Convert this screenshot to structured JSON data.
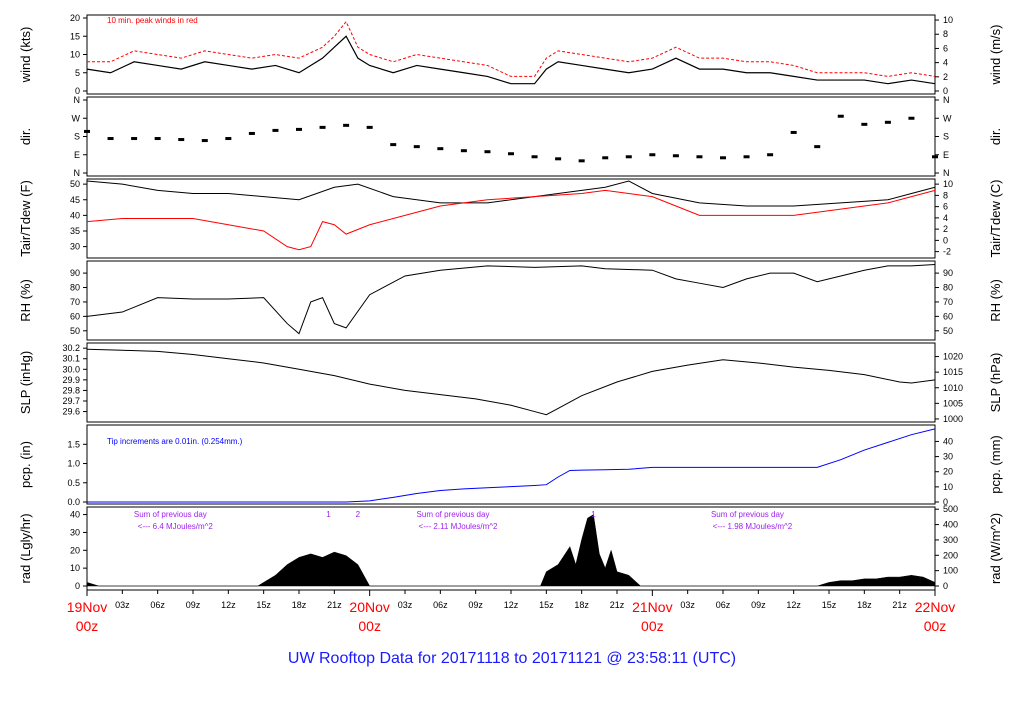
{
  "title": "UW Rooftop Data for 20171118  to  20171121 @ 23:58:11  (UTC)",
  "colors": {
    "black": "#000000",
    "red": "#ff0000",
    "blue": "#0000ff",
    "purple": "#a020f0",
    "title_blue": "#1a1aff"
  },
  "x_axis": {
    "range_hours": [
      0,
      72
    ],
    "ticks": [
      {
        "h": 3,
        "label": "03z"
      },
      {
        "h": 6,
        "label": "06z"
      },
      {
        "h": 9,
        "label": "09z"
      },
      {
        "h": 12,
        "label": "12z"
      },
      {
        "h": 15,
        "label": "15z"
      },
      {
        "h": 18,
        "label": "18z"
      },
      {
        "h": 21,
        "label": "21z"
      },
      {
        "h": 27,
        "label": "03z"
      },
      {
        "h": 30,
        "label": "06z"
      },
      {
        "h": 33,
        "label": "09z"
      },
      {
        "h": 36,
        "label": "12z"
      },
      {
        "h": 39,
        "label": "15z"
      },
      {
        "h": 42,
        "label": "18z"
      },
      {
        "h": 45,
        "label": "21z"
      },
      {
        "h": 51,
        "label": "03z"
      },
      {
        "h": 54,
        "label": "06z"
      },
      {
        "h": 57,
        "label": "09z"
      },
      {
        "h": 60,
        "label": "12z"
      },
      {
        "h": 63,
        "label": "15z"
      },
      {
        "h": 66,
        "label": "18z"
      },
      {
        "h": 69,
        "label": "21z"
      }
    ],
    "day_labels": [
      {
        "h": 0,
        "top": "19Nov",
        "bottom": "00z"
      },
      {
        "h": 24,
        "top": "20Nov",
        "bottom": "00z"
      },
      {
        "h": 48,
        "top": "21Nov",
        "bottom": "00z"
      },
      {
        "h": 72,
        "top": "22Nov",
        "bottom": "00z"
      }
    ]
  },
  "panels": {
    "wind": {
      "ylabel_left": "wind (kts)",
      "ylabel_right": "wind (m/s)",
      "left_ticks": [
        0,
        5,
        10,
        15,
        20
      ],
      "right_ticks": [
        0,
        2,
        4,
        6,
        8,
        10
      ],
      "annotation": "10 min. peak winds in red"
    },
    "dir": {
      "ylabel": "dir.",
      "ticks": [
        "N",
        "E",
        "S",
        "W",
        "N"
      ]
    },
    "temp": {
      "ylabel_left": "Tair/Tdew (F)",
      "ylabel_right": "Tair/Tdew (C)",
      "left_ticks": [
        30,
        35,
        40,
        45,
        50
      ],
      "right_ticks": [
        -2,
        0,
        2,
        4,
        6,
        8,
        10
      ]
    },
    "rh": {
      "ylabel": "RH (%)",
      "ticks": [
        50,
        60,
        70,
        80,
        90
      ]
    },
    "slp": {
      "ylabel_left": "SLP (inHg)",
      "ylabel_right": "SLP (hPa)",
      "left_ticks": [
        "29.6",
        "29.7",
        "29.8",
        "29.9",
        "30.0",
        "30.1",
        "30.2"
      ],
      "right_ticks": [
        1000,
        1005,
        1010,
        1015,
        1020
      ]
    },
    "pcp": {
      "ylabel_left": "pcp. (in)",
      "ylabel_right": "pcp. (mm)",
      "left_ticks": [
        "0.0",
        "0.5",
        "1.0",
        "1.5"
      ],
      "right_ticks": [
        0,
        10,
        20,
        30,
        40
      ],
      "annotation": "Tip increments are 0.01in. (0.254mm.)"
    },
    "rad": {
      "ylabel_left": "rad (Lgly/hr)",
      "ylabel_right": "rad (W/m^2)",
      "left_ticks": [
        0,
        10,
        20,
        30,
        40
      ],
      "right_ticks": [
        0,
        100,
        200,
        300,
        400,
        500
      ],
      "marks": [
        {
          "h": 20.5,
          "label": "1"
        },
        {
          "h": 23.0,
          "label": "2"
        },
        {
          "h": 43.0,
          "label": "1"
        }
      ],
      "day_sums": [
        {
          "h": 7.5,
          "line1": "Sum of previous day",
          "line2": "<--- 6.4 MJoules/m^2"
        },
        {
          "h": 31.5,
          "line1": "Sum of previous day",
          "line2": "<--- 2.11 MJoules/m^2"
        },
        {
          "h": 56.5,
          "line1": "Sum of previous day",
          "line2": "<--- 1.98 MJoules/m^2"
        }
      ]
    }
  },
  "chart_data": [
    {
      "type": "line",
      "title": "",
      "ylabel": "wind (kts)",
      "y2label": "wind (m/s)",
      "ylim": [
        0,
        20
      ],
      "series": [
        {
          "color": "#000000",
          "x": [
            0,
            2,
            4,
            6,
            8,
            10,
            12,
            14,
            16,
            18,
            20,
            21,
            22,
            23,
            24,
            26,
            28,
            30,
            32,
            34,
            36,
            38,
            39,
            40,
            42,
            44,
            46,
            48,
            50,
            52,
            54,
            56,
            58,
            60,
            62,
            64,
            66,
            68,
            70,
            72
          ],
          "y": [
            6,
            5,
            8,
            7,
            6,
            8,
            7,
            6,
            7,
            5,
            9,
            12,
            15,
            9,
            7,
            5,
            7,
            6,
            5,
            4,
            2,
            2,
            6,
            8,
            7,
            6,
            5,
            6,
            9,
            6,
            6,
            5,
            5,
            4,
            3,
            3,
            3,
            2,
            3,
            2
          ]
        },
        {
          "color": "#ff0000",
          "x": [
            0,
            2,
            4,
            6,
            8,
            10,
            12,
            14,
            16,
            18,
            20,
            21,
            22,
            23,
            24,
            26,
            28,
            30,
            32,
            34,
            36,
            38,
            39,
            40,
            42,
            44,
            46,
            48,
            50,
            52,
            54,
            56,
            58,
            60,
            62,
            64,
            66,
            68,
            70,
            72
          ],
          "y": [
            8,
            8,
            11,
            10,
            9,
            11,
            10,
            9,
            10,
            9,
            12,
            15,
            19,
            12,
            10,
            8,
            10,
            9,
            8,
            7,
            4,
            4,
            9,
            11,
            10,
            9,
            8,
            9,
            12,
            9,
            9,
            8,
            8,
            7,
            5,
            5,
            5,
            4,
            5,
            4
          ]
        }
      ]
    },
    {
      "type": "scatter",
      "title": "",
      "ylabel": "dir.",
      "y_axis": "compass: 0=N, 90=E, 180=S, 270=W, 360=N",
      "series": [
        {
          "color": "#000000",
          "x": [
            0,
            2,
            4,
            6,
            8,
            10,
            12,
            14,
            16,
            18,
            20,
            22,
            24,
            26,
            28,
            30,
            32,
            34,
            36,
            38,
            40,
            42,
            44,
            46,
            48,
            50,
            52,
            54,
            56,
            58,
            60,
            62,
            64,
            66,
            68,
            70,
            72
          ],
          "y": [
            205,
            170,
            170,
            170,
            165,
            160,
            170,
            195,
            210,
            215,
            225,
            235,
            225,
            140,
            130,
            120,
            110,
            105,
            95,
            80,
            70,
            60,
            75,
            80,
            90,
            85,
            80,
            75,
            80,
            90,
            200,
            130,
            280,
            240,
            250,
            270,
            80
          ]
        }
      ]
    },
    {
      "type": "line",
      "title": "",
      "ylabel": "Tair/Tdew (F)",
      "y2label": "Tair/Tdew (C)",
      "ylim": [
        27,
        51
      ],
      "series": [
        {
          "color": "#000000",
          "x": [
            0,
            3,
            6,
            9,
            12,
            15,
            18,
            21,
            23,
            26,
            30,
            34,
            38,
            42,
            44,
            46,
            48,
            52,
            56,
            60,
            64,
            68,
            70,
            72
          ],
          "y": [
            51,
            50,
            48,
            47,
            47,
            46,
            45,
            49,
            50,
            46,
            44,
            44,
            46,
            48,
            49,
            51,
            47,
            44,
            43,
            43,
            44,
            45,
            47,
            49
          ]
        },
        {
          "color": "#ff0000",
          "x": [
            0,
            3,
            6,
            9,
            12,
            15,
            17,
            18,
            19,
            20,
            21,
            22,
            24,
            27,
            30,
            34,
            38,
            42,
            44,
            46,
            48,
            50,
            52,
            56,
            60,
            64,
            68,
            70,
            72
          ],
          "y": [
            38,
            39,
            39,
            39,
            37,
            35,
            30,
            29,
            30,
            38,
            37,
            34,
            37,
            40,
            43,
            45,
            46,
            47,
            48,
            47,
            46,
            43,
            40,
            40,
            40,
            42,
            44,
            46,
            48
          ]
        }
      ]
    },
    {
      "type": "line",
      "title": "",
      "ylabel": "RH (%)",
      "ylim": [
        45,
        97
      ],
      "series": [
        {
          "color": "#000000",
          "x": [
            0,
            3,
            6,
            9,
            12,
            15,
            17,
            18,
            19,
            20,
            21,
            22,
            24,
            27,
            30,
            34,
            38,
            42,
            44,
            48,
            50,
            52,
            54,
            56,
            58,
            60,
            62,
            64,
            66,
            68,
            70,
            72
          ],
          "y": [
            60,
            63,
            73,
            72,
            72,
            73,
            55,
            48,
            70,
            73,
            55,
            52,
            75,
            88,
            92,
            95,
            94,
            95,
            93,
            92,
            86,
            83,
            80,
            86,
            90,
            90,
            84,
            88,
            92,
            95,
            95,
            96
          ]
        }
      ]
    },
    {
      "type": "line",
      "title": "",
      "ylabel": "SLP (inHg)",
      "y2label": "SLP (hPa)",
      "ylim": [
        29.52,
        30.23
      ],
      "series": [
        {
          "color": "#000000",
          "x": [
            0,
            3,
            6,
            9,
            12,
            15,
            18,
            21,
            24,
            27,
            30,
            33,
            36,
            38,
            39,
            40,
            42,
            45,
            48,
            51,
            54,
            57,
            60,
            63,
            66,
            69,
            70,
            72
          ],
          "y": [
            30.19,
            30.18,
            30.17,
            30.14,
            30.1,
            30.06,
            30.0,
            29.94,
            29.86,
            29.8,
            29.76,
            29.72,
            29.66,
            29.6,
            29.57,
            29.63,
            29.75,
            29.88,
            29.98,
            30.04,
            30.09,
            30.06,
            30.02,
            29.99,
            29.95,
            29.88,
            29.87,
            29.9
          ]
        }
      ]
    },
    {
      "type": "line",
      "title": "",
      "ylabel": "pcp. (in)",
      "y2label": "pcp. (mm)",
      "ylim": [
        0,
        1.95
      ],
      "series": [
        {
          "color": "#0000ff",
          "x": [
            0,
            22,
            24,
            26,
            28,
            30,
            32,
            34,
            36,
            38,
            39,
            40,
            41,
            42,
            44,
            46,
            48,
            50,
            52,
            54,
            56,
            58,
            60,
            62,
            64,
            66,
            68,
            70,
            72
          ],
          "y": [
            0,
            0,
            0.03,
            0.12,
            0.22,
            0.3,
            0.34,
            0.37,
            0.4,
            0.43,
            0.45,
            0.65,
            0.82,
            0.83,
            0.84,
            0.85,
            0.9,
            0.9,
            0.9,
            0.9,
            0.9,
            0.9,
            0.9,
            0.9,
            1.1,
            1.35,
            1.55,
            1.75,
            1.9
          ]
        }
      ]
    },
    {
      "type": "area",
      "title": "",
      "ylabel": "rad (Lgly/hr)",
      "y2label": "rad (W/m^2)",
      "ylim": [
        0,
        42
      ],
      "series": [
        {
          "color": "#000000",
          "x": [
            0,
            1,
            14.5,
            16,
            17,
            18,
            19,
            20,
            21,
            22,
            23,
            24,
            38.5,
            39,
            40,
            41,
            41.5,
            42,
            42.5,
            43,
            43.5,
            44,
            44.5,
            45,
            46,
            47,
            62,
            63,
            64,
            65,
            66,
            67,
            68,
            69,
            70,
            71,
            72
          ],
          "y": [
            2,
            0,
            0,
            6,
            12,
            16,
            18,
            16,
            19,
            17,
            12,
            0,
            0,
            8,
            12,
            22,
            12,
            26,
            38,
            40,
            18,
            10,
            20,
            8,
            6,
            0,
            0,
            2,
            3,
            3,
            4,
            4,
            5,
            5,
            6,
            5,
            2
          ]
        }
      ]
    }
  ]
}
